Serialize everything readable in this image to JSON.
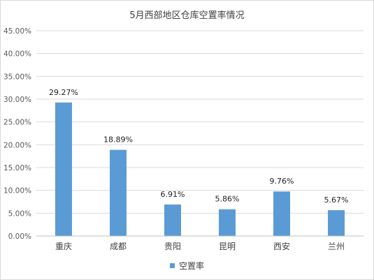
{
  "chart_data": {
    "type": "bar",
    "title": "5月西部地区仓库空置率情况",
    "categories": [
      "重庆",
      "成都",
      "贵阳",
      "昆明",
      "西安",
      "兰州"
    ],
    "series": [
      {
        "name": "空置率",
        "values": [
          29.27,
          18.89,
          6.91,
          5.86,
          9.76,
          5.67
        ],
        "data_labels": [
          "29.27%",
          "18.89%",
          "6.91%",
          "5.86%",
          "9.76%",
          "5.67%"
        ]
      }
    ],
    "y_ticks": [
      "0.00%",
      "5.00%",
      "10.00%",
      "15.00%",
      "20.00%",
      "25.00%",
      "30.00%",
      "35.00%",
      "40.00%",
      "45.00%"
    ],
    "ylim": [
      0,
      45
    ],
    "grid": true,
    "legend_position": "bottom",
    "colors": {
      "bar": "#5b9bd5",
      "grid": "#d9d9d9",
      "axis": "#bfbfbf"
    }
  }
}
